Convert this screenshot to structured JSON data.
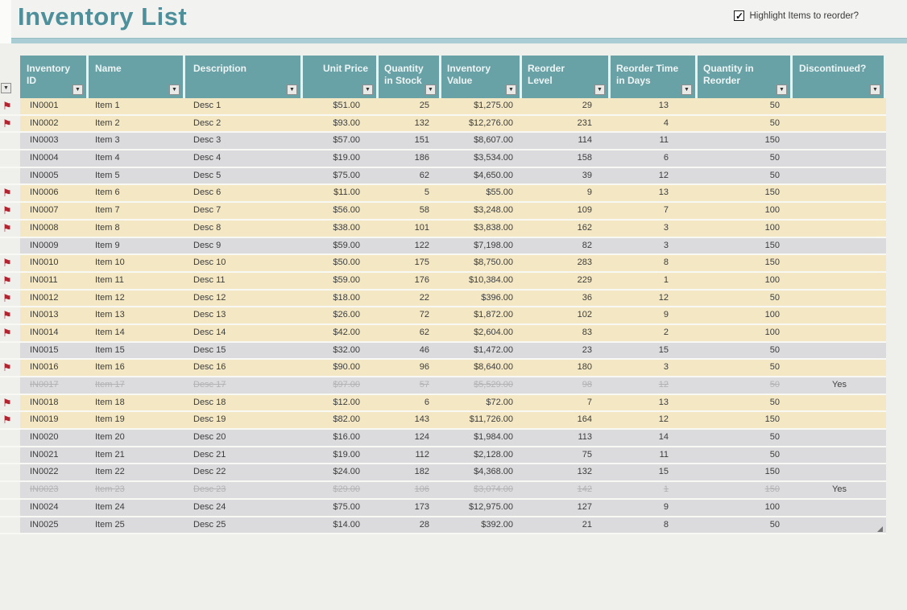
{
  "page": {
    "title": "Inventory List",
    "highlight_checkbox": {
      "label": "Highlight Items to reorder?",
      "checked": true,
      "check_glyph": "✓"
    }
  },
  "colors": {
    "page_bg": "#efefec",
    "band_bg": "#f2f2f0",
    "title_color": "#4d909b",
    "rule_color": "#a9cdd2",
    "header_bg": "#68a2a7",
    "header_text": "#eef5f4",
    "row_highlight": "#f4e8c4",
    "row_normal": "#dbdbde",
    "row_disc": "#dcdcdf",
    "strike_color": "#b2b2b5",
    "text_color": "#3c3c3c",
    "flag_color": "#b32430"
  },
  "icons": {
    "filter_arrow": "▼",
    "reorder_flag": "⚑"
  },
  "table": {
    "columns": [
      {
        "key": "flag",
        "label": ""
      },
      {
        "key": "id",
        "label": "Inventory\nID"
      },
      {
        "key": "name",
        "label": "Name"
      },
      {
        "key": "desc",
        "label": "Description"
      },
      {
        "key": "unit_price",
        "label": "Unit Price"
      },
      {
        "key": "qty_stock",
        "label": "Quantity\nin Stock"
      },
      {
        "key": "inv_value",
        "label": "Inventory\nValue"
      },
      {
        "key": "reorder_level",
        "label": "Reorder\nLevel"
      },
      {
        "key": "reorder_time",
        "label": "Reorder Time\nin Days"
      },
      {
        "key": "qty_reorder",
        "label": "Quantity in\nReorder"
      },
      {
        "key": "discontinued",
        "label": "Discontinued?"
      }
    ],
    "rows": [
      {
        "id": "IN0001",
        "name": "Item 1",
        "desc": "Desc 1",
        "unit_price": "$51.00",
        "qty_stock": "25",
        "inv_value": "$1,275.00",
        "reorder_level": "29",
        "reorder_time": "13",
        "qty_reorder": "50",
        "discontinued": "",
        "flag": true,
        "state": "reorder"
      },
      {
        "id": "IN0002",
        "name": "Item 2",
        "desc": "Desc 2",
        "unit_price": "$93.00",
        "qty_stock": "132",
        "inv_value": "$12,276.00",
        "reorder_level": "231",
        "reorder_time": "4",
        "qty_reorder": "50",
        "discontinued": "",
        "flag": true,
        "state": "reorder"
      },
      {
        "id": "IN0003",
        "name": "Item 3",
        "desc": "Desc 3",
        "unit_price": "$57.00",
        "qty_stock": "151",
        "inv_value": "$8,607.00",
        "reorder_level": "114",
        "reorder_time": "11",
        "qty_reorder": "150",
        "discontinued": "",
        "flag": false,
        "state": "normal"
      },
      {
        "id": "IN0004",
        "name": "Item 4",
        "desc": "Desc 4",
        "unit_price": "$19.00",
        "qty_stock": "186",
        "inv_value": "$3,534.00",
        "reorder_level": "158",
        "reorder_time": "6",
        "qty_reorder": "50",
        "discontinued": "",
        "flag": false,
        "state": "normal"
      },
      {
        "id": "IN0005",
        "name": "Item 5",
        "desc": "Desc 5",
        "unit_price": "$75.00",
        "qty_stock": "62",
        "inv_value": "$4,650.00",
        "reorder_level": "39",
        "reorder_time": "12",
        "qty_reorder": "50",
        "discontinued": "",
        "flag": false,
        "state": "normal"
      },
      {
        "id": "IN0006",
        "name": "Item 6",
        "desc": "Desc 6",
        "unit_price": "$11.00",
        "qty_stock": "5",
        "inv_value": "$55.00",
        "reorder_level": "9",
        "reorder_time": "13",
        "qty_reorder": "150",
        "discontinued": "",
        "flag": true,
        "state": "reorder"
      },
      {
        "id": "IN0007",
        "name": "Item 7",
        "desc": "Desc 7",
        "unit_price": "$56.00",
        "qty_stock": "58",
        "inv_value": "$3,248.00",
        "reorder_level": "109",
        "reorder_time": "7",
        "qty_reorder": "100",
        "discontinued": "",
        "flag": true,
        "state": "reorder"
      },
      {
        "id": "IN0008",
        "name": "Item 8",
        "desc": "Desc 8",
        "unit_price": "$38.00",
        "qty_stock": "101",
        "inv_value": "$3,838.00",
        "reorder_level": "162",
        "reorder_time": "3",
        "qty_reorder": "100",
        "discontinued": "",
        "flag": true,
        "state": "reorder"
      },
      {
        "id": "IN0009",
        "name": "Item 9",
        "desc": "Desc 9",
        "unit_price": "$59.00",
        "qty_stock": "122",
        "inv_value": "$7,198.00",
        "reorder_level": "82",
        "reorder_time": "3",
        "qty_reorder": "150",
        "discontinued": "",
        "flag": false,
        "state": "normal"
      },
      {
        "id": "IN0010",
        "name": "Item 10",
        "desc": "Desc 10",
        "unit_price": "$50.00",
        "qty_stock": "175",
        "inv_value": "$8,750.00",
        "reorder_level": "283",
        "reorder_time": "8",
        "qty_reorder": "150",
        "discontinued": "",
        "flag": true,
        "state": "reorder"
      },
      {
        "id": "IN0011",
        "name": "Item 11",
        "desc": "Desc 11",
        "unit_price": "$59.00",
        "qty_stock": "176",
        "inv_value": "$10,384.00",
        "reorder_level": "229",
        "reorder_time": "1",
        "qty_reorder": "100",
        "discontinued": "",
        "flag": true,
        "state": "reorder"
      },
      {
        "id": "IN0012",
        "name": "Item 12",
        "desc": "Desc 12",
        "unit_price": "$18.00",
        "qty_stock": "22",
        "inv_value": "$396.00",
        "reorder_level": "36",
        "reorder_time": "12",
        "qty_reorder": "50",
        "discontinued": "",
        "flag": true,
        "state": "reorder"
      },
      {
        "id": "IN0013",
        "name": "Item 13",
        "desc": "Desc 13",
        "unit_price": "$26.00",
        "qty_stock": "72",
        "inv_value": "$1,872.00",
        "reorder_level": "102",
        "reorder_time": "9",
        "qty_reorder": "100",
        "discontinued": "",
        "flag": true,
        "state": "reorder"
      },
      {
        "id": "IN0014",
        "name": "Item 14",
        "desc": "Desc 14",
        "unit_price": "$42.00",
        "qty_stock": "62",
        "inv_value": "$2,604.00",
        "reorder_level": "83",
        "reorder_time": "2",
        "qty_reorder": "100",
        "discontinued": "",
        "flag": true,
        "state": "reorder"
      },
      {
        "id": "IN0015",
        "name": "Item 15",
        "desc": "Desc 15",
        "unit_price": "$32.00",
        "qty_stock": "46",
        "inv_value": "$1,472.00",
        "reorder_level": "23",
        "reorder_time": "15",
        "qty_reorder": "50",
        "discontinued": "",
        "flag": false,
        "state": "normal"
      },
      {
        "id": "IN0016",
        "name": "Item 16",
        "desc": "Desc 16",
        "unit_price": "$90.00",
        "qty_stock": "96",
        "inv_value": "$8,640.00",
        "reorder_level": "180",
        "reorder_time": "3",
        "qty_reorder": "50",
        "discontinued": "",
        "flag": true,
        "state": "reorder"
      },
      {
        "id": "IN0017",
        "name": "Item 17",
        "desc": "Desc 17",
        "unit_price": "$97.00",
        "qty_stock": "57",
        "inv_value": "$5,529.00",
        "reorder_level": "98",
        "reorder_time": "12",
        "qty_reorder": "50",
        "discontinued": "Yes",
        "flag": false,
        "state": "discontinued"
      },
      {
        "id": "IN0018",
        "name": "Item 18",
        "desc": "Desc 18",
        "unit_price": "$12.00",
        "qty_stock": "6",
        "inv_value": "$72.00",
        "reorder_level": "7",
        "reorder_time": "13",
        "qty_reorder": "50",
        "discontinued": "",
        "flag": true,
        "state": "reorder"
      },
      {
        "id": "IN0019",
        "name": "Item 19",
        "desc": "Desc 19",
        "unit_price": "$82.00",
        "qty_stock": "143",
        "inv_value": "$11,726.00",
        "reorder_level": "164",
        "reorder_time": "12",
        "qty_reorder": "150",
        "discontinued": "",
        "flag": true,
        "state": "reorder"
      },
      {
        "id": "IN0020",
        "name": "Item 20",
        "desc": "Desc 20",
        "unit_price": "$16.00",
        "qty_stock": "124",
        "inv_value": "$1,984.00",
        "reorder_level": "113",
        "reorder_time": "14",
        "qty_reorder": "50",
        "discontinued": "",
        "flag": false,
        "state": "normal"
      },
      {
        "id": "IN0021",
        "name": "Item 21",
        "desc": "Desc 21",
        "unit_price": "$19.00",
        "qty_stock": "112",
        "inv_value": "$2,128.00",
        "reorder_level": "75",
        "reorder_time": "11",
        "qty_reorder": "50",
        "discontinued": "",
        "flag": false,
        "state": "normal"
      },
      {
        "id": "IN0022",
        "name": "Item 22",
        "desc": "Desc 22",
        "unit_price": "$24.00",
        "qty_stock": "182",
        "inv_value": "$4,368.00",
        "reorder_level": "132",
        "reorder_time": "15",
        "qty_reorder": "150",
        "discontinued": "",
        "flag": false,
        "state": "normal"
      },
      {
        "id": "IN0023",
        "name": "Item 23",
        "desc": "Desc 23",
        "unit_price": "$29.00",
        "qty_stock": "106",
        "inv_value": "$3,074.00",
        "reorder_level": "142",
        "reorder_time": "1",
        "qty_reorder": "150",
        "discontinued": "Yes",
        "flag": false,
        "state": "discontinued"
      },
      {
        "id": "IN0024",
        "name": "Item 24",
        "desc": "Desc 24",
        "unit_price": "$75.00",
        "qty_stock": "173",
        "inv_value": "$12,975.00",
        "reorder_level": "127",
        "reorder_time": "9",
        "qty_reorder": "100",
        "discontinued": "",
        "flag": false,
        "state": "normal"
      },
      {
        "id": "IN0025",
        "name": "Item 25",
        "desc": "Desc 25",
        "unit_price": "$14.00",
        "qty_stock": "28",
        "inv_value": "$392.00",
        "reorder_level": "21",
        "reorder_time": "8",
        "qty_reorder": "50",
        "discontinued": "",
        "flag": false,
        "state": "normal"
      }
    ]
  }
}
